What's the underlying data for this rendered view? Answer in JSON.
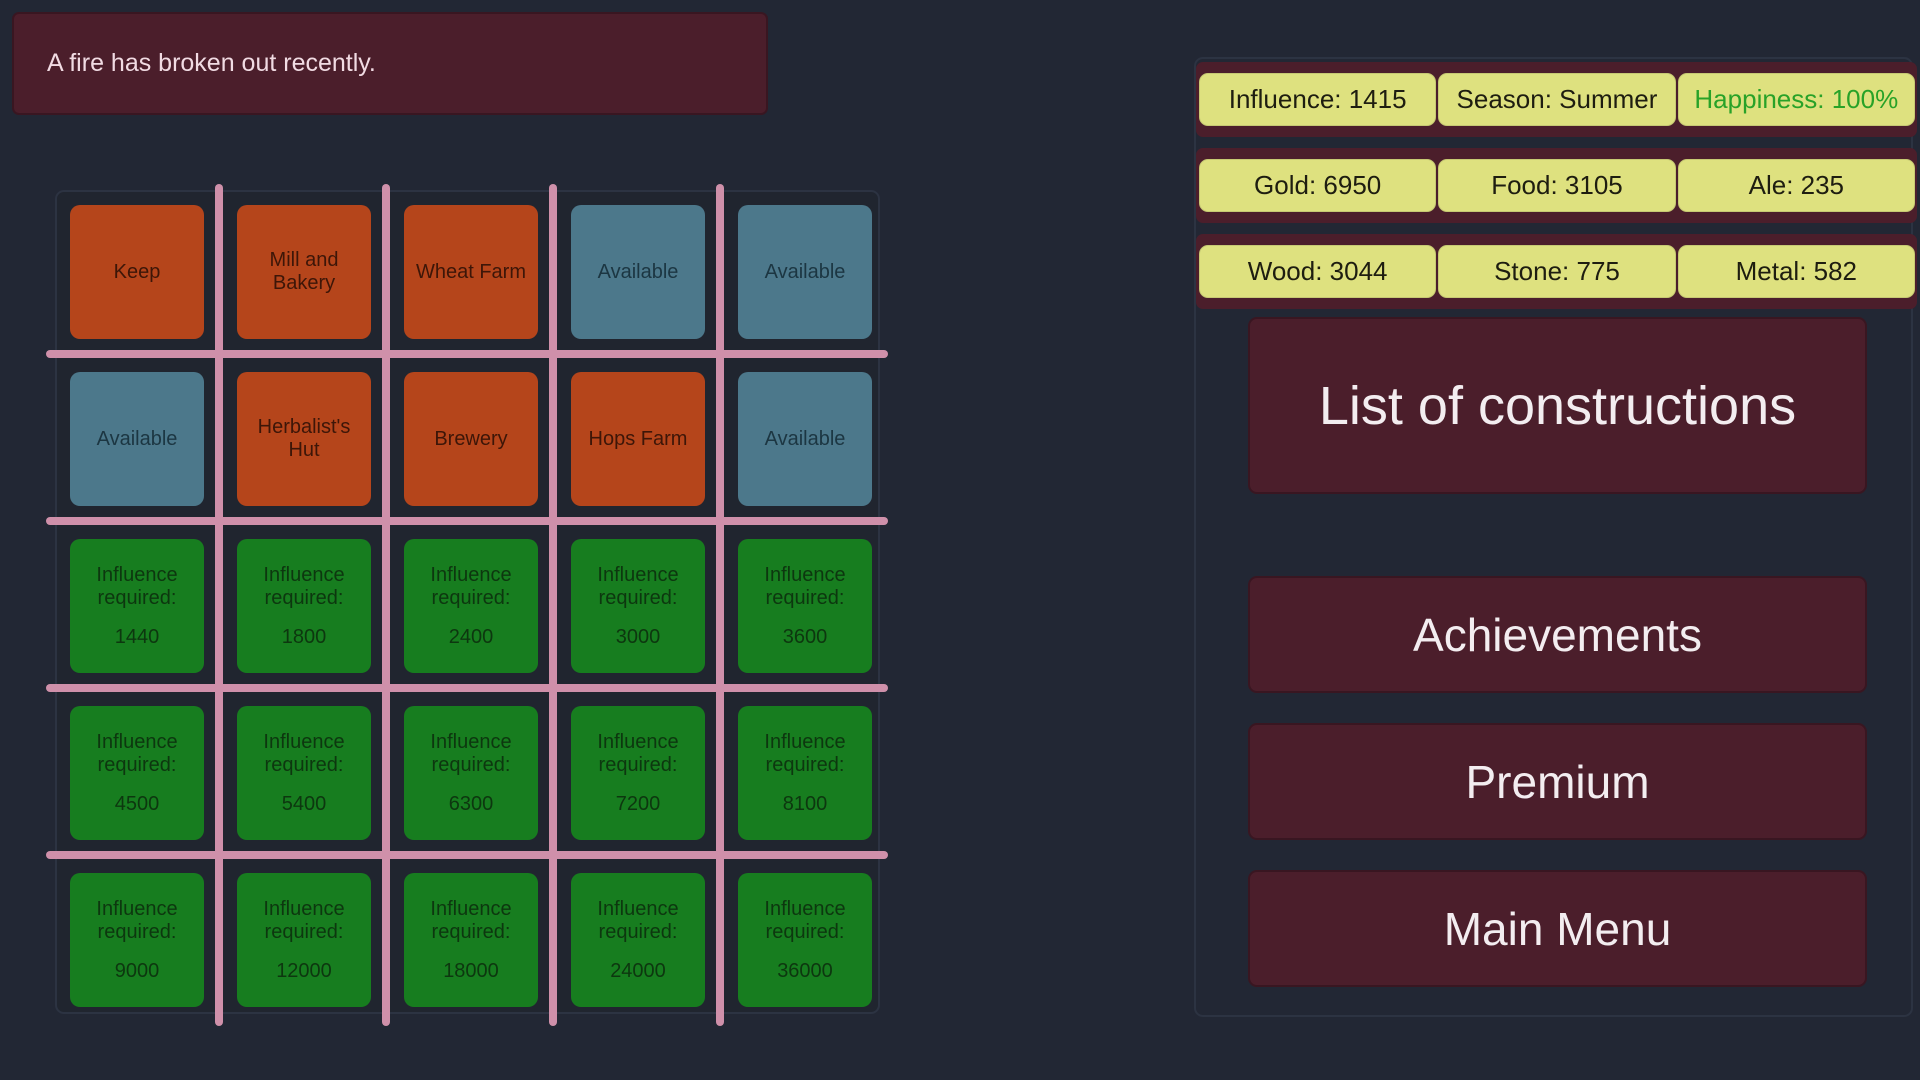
{
  "notification": {
    "text": "A fire has broken out recently."
  },
  "grid": {
    "tiles": [
      {
        "label": "Keep"
      },
      {
        "label": "Mill and Bakery"
      },
      {
        "label": "Wheat Farm"
      },
      {
        "label": "Available"
      },
      {
        "label": "Available"
      },
      {
        "label": "Available"
      },
      {
        "label": "Herbalist's Hut"
      },
      {
        "label": "Brewery"
      },
      {
        "label": "Hops Farm"
      },
      {
        "label": "Available"
      },
      {
        "label": "Influence required:",
        "value": "1440"
      },
      {
        "label": "Influence required:",
        "value": "1800"
      },
      {
        "label": "Influence required:",
        "value": "2400"
      },
      {
        "label": "Influence required:",
        "value": "3000"
      },
      {
        "label": "Influence required:",
        "value": "3600"
      },
      {
        "label": "Influence required:",
        "value": "4500"
      },
      {
        "label": "Influence required:",
        "value": "5400"
      },
      {
        "label": "Influence required:",
        "value": "6300"
      },
      {
        "label": "Influence required:",
        "value": "7200"
      },
      {
        "label": "Influence required:",
        "value": "8100"
      },
      {
        "label": "Influence required:",
        "value": "9000"
      },
      {
        "label": "Influence required:",
        "value": "12000"
      },
      {
        "label": "Influence required:",
        "value": "18000"
      },
      {
        "label": "Influence required:",
        "value": "24000"
      },
      {
        "label": "Influence required:",
        "value": "36000"
      }
    ]
  },
  "resources": {
    "rows": [
      [
        "Influence: 1415",
        "Season: Summer",
        "Happiness: 100%"
      ],
      [
        "Gold: 6950",
        "Food: 3105",
        "Ale: 235"
      ],
      [
        "Wood: 3044",
        "Stone: 775",
        "Metal: 582"
      ]
    ]
  },
  "menu": {
    "items": [
      "List of constructions",
      "Achievements",
      "Premium",
      "Main Menu"
    ]
  },
  "colors": {
    "background": "#222734",
    "panel_maroon": "#4B1E2B",
    "tile_built": "#B5451B",
    "tile_available": "#4C788B",
    "tile_locked": "#177D1F",
    "grid_divider_pink": "#CF90AA",
    "resource_chip_yellow": "#DEE17F",
    "happiness_text_green": "#28A228"
  }
}
